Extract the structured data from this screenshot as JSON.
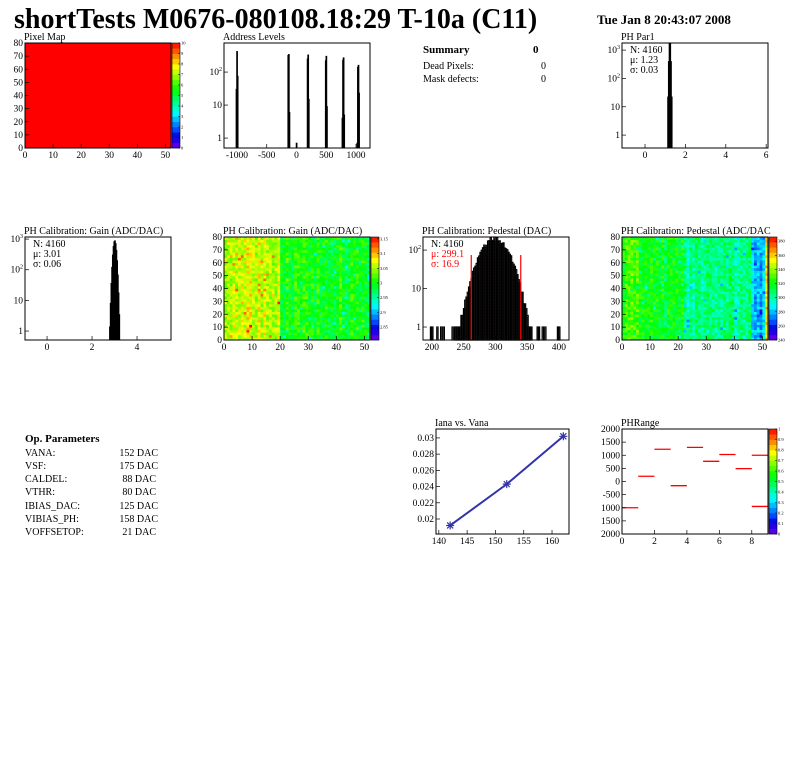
{
  "header": {
    "title": "shortTests M0676-080108.18:29 T-10a (C11)",
    "date": "Tue Jan  8 20:43:07 2008"
  },
  "summary": {
    "title": "Summary",
    "total": "0",
    "rows": [
      {
        "label": "Dead Pixels:",
        "value": "0"
      },
      {
        "label": "Mask defects:",
        "value": "0"
      }
    ]
  },
  "op_parameters": {
    "title": "Op. Parameters",
    "rows": [
      {
        "label": "VANA:",
        "value": "152 DAC"
      },
      {
        "label": "VSF:",
        "value": "175 DAC"
      },
      {
        "label": "CALDEL:",
        "value": "88 DAC"
      },
      {
        "label": "VTHR:",
        "value": "80 DAC"
      },
      {
        "label": "IBIAS_DAC:",
        "value": "125 DAC"
      },
      {
        "label": "VIBIAS_PH:",
        "value": "158 DAC"
      },
      {
        "label": "VOFFSETOP:",
        "value": "21 DAC"
      }
    ]
  },
  "chart_data": [
    {
      "id": "pixmap",
      "type": "heatmap",
      "title": "Pixel Map",
      "xlim": [
        0,
        52
      ],
      "ylim": [
        0,
        80
      ],
      "zlim": [
        0,
        10
      ],
      "xticks": [
        "0",
        "10",
        "20",
        "30",
        "40",
        "50"
      ],
      "yticks": [
        "0",
        "10",
        "20",
        "30",
        "40",
        "50",
        "60",
        "70",
        "80"
      ],
      "palette_ticks": [
        "0",
        "1",
        "2",
        "3",
        "4",
        "5",
        "6",
        "7",
        "8",
        "9",
        "10"
      ],
      "uniform_value": 10
    },
    {
      "id": "addr",
      "type": "bar",
      "title": "Address Levels",
      "xlim": [
        -1218,
        1235
      ],
      "yscale": "log",
      "ylim": [
        0.5,
        760
      ],
      "xticks": [
        "-1000",
        "-500",
        "0",
        "500",
        "1000"
      ],
      "yticks": [
        "1",
        "10",
        "10^2"
      ],
      "bin_width": 10,
      "bins": [
        [
          -1010,
          30
        ],
        [
          -1000,
          420
        ],
        [
          -990,
          75
        ],
        [
          -140,
          320
        ],
        [
          -130,
          340
        ],
        [
          -120,
          6
        ],
        [
          0,
          0.7
        ],
        [
          185,
          250
        ],
        [
          195,
          330
        ],
        [
          205,
          15
        ],
        [
          490,
          220
        ],
        [
          500,
          300
        ],
        [
          510,
          9
        ],
        [
          770,
          4
        ],
        [
          780,
          230
        ],
        [
          790,
          270
        ],
        [
          800,
          5
        ],
        [
          1020,
          0.7
        ],
        [
          1030,
          140
        ],
        [
          1040,
          160
        ],
        [
          1050,
          23
        ]
      ]
    },
    {
      "id": "par1",
      "type": "bar",
      "title": "PH Par1",
      "xlim": [
        -1.14,
        6.09
      ],
      "yscale": "log",
      "ylim": [
        0.35,
        1780
      ],
      "xticks": [
        "0",
        "2",
        "4",
        "6"
      ],
      "yticks": [
        "1",
        "10",
        "10^2",
        "10^3"
      ],
      "stats": {
        "N": "N: 4160",
        "mean": "μ: 1.23",
        "sigma": "σ: 0.03"
      },
      "N": 4160,
      "mean": 1.23,
      "sigma": 0.03,
      "bin_width": 0.036
    },
    {
      "id": "gainh",
      "type": "bar",
      "title": "PH Calibration: Gain (ADC/DAC)",
      "xlim": [
        -0.98,
        5.51
      ],
      "yscale": "log",
      "ylim": [
        0.51,
        1170
      ],
      "xticks": [
        "0",
        "2",
        "4"
      ],
      "yticks": [
        "1",
        "10",
        "10^2",
        "10^3"
      ],
      "stats": {
        "N": "N: 4160",
        "mean": "μ: 3.01",
        "sigma": "σ: 0.06"
      },
      "N": 4160,
      "mean": 3.01,
      "sigma": 0.06,
      "bin_width": 0.032
    },
    {
      "id": "gainm",
      "type": "heatmap",
      "title": "PH Calibration: Gain (ADC/DAC)",
      "xlim": [
        0,
        52
      ],
      "ylim": [
        0,
        80
      ],
      "zlim": [
        2.82,
        3.18
      ],
      "xticks": [
        "0",
        "10",
        "20",
        "30",
        "40",
        "50"
      ],
      "yticks": [
        "0",
        "10",
        "20",
        "30",
        "40",
        "50",
        "60",
        "70",
        "80"
      ],
      "palette_ticks": [
        "2.85",
        "2.9",
        "2.95",
        "3",
        "3.05",
        "3.1",
        "3.15"
      ]
    },
    {
      "id": "pedh",
      "type": "bar",
      "title": "PH Calibration: Pedestal (DAC)",
      "xlim": [
        186,
        416
      ],
      "yscale": "log",
      "ylim": [
        0.46,
        219
      ],
      "xticks": [
        "200",
        "250",
        "300",
        "350",
        "400"
      ],
      "yticks": [
        "1",
        "10",
        "10^2"
      ],
      "stats": {
        "N": "N: 4160",
        "mean": "μ: 299.1",
        "sigma": "σ: 16.9"
      },
      "N": 4160,
      "mean": 299.1,
      "sigma": 16.9,
      "bin_width": 2,
      "fit_range": [
        262,
        340
      ],
      "fit_color": "#ff0000"
    },
    {
      "id": "pedm",
      "type": "heatmap",
      "title": "PH Calibration: Pedestal (ADC/DAC",
      "xlim": [
        0,
        52
      ],
      "ylim": [
        0,
        80
      ],
      "zlim": [
        240,
        385
      ],
      "xticks": [
        "0",
        "10",
        "20",
        "30",
        "40",
        "50"
      ],
      "yticks": [
        "0",
        "10",
        "20",
        "30",
        "40",
        "50",
        "60",
        "70",
        "80"
      ],
      "palette_ticks": [
        "240",
        "260",
        "280",
        "300",
        "320",
        "340",
        "360",
        "380"
      ]
    },
    {
      "id": "iana",
      "type": "line",
      "title": "Iana vs. Vana",
      "xlim": [
        139.5,
        163
      ],
      "ylim": [
        0.01815,
        0.0311
      ],
      "xticks": [
        "140",
        "145",
        "150",
        "155",
        "160"
      ],
      "yticks": [
        "0.02",
        "0.022",
        "0.024",
        "0.026",
        "0.028",
        "0.03"
      ],
      "x": [
        142,
        152,
        162
      ],
      "y": [
        0.0192,
        0.0243,
        0.0302
      ],
      "color": "#3333aa"
    },
    {
      "id": "phr",
      "type": "heatmap",
      "title": "PHRange",
      "xlim": [
        0,
        9
      ],
      "ylim": [
        -2000,
        2000
      ],
      "zlim": [
        0,
        1
      ],
      "xticks": [
        "0",
        "2",
        "4",
        "6",
        "8"
      ],
      "yticks": [
        "2000",
        "1500",
        "1000",
        "500",
        "0",
        "-500",
        "1000",
        "1500",
        "2000"
      ],
      "palette_ticks": [
        "0",
        "0.1",
        "0.2",
        "0.3",
        "0.4",
        "0.5",
        "0.6",
        "0.7",
        "0.8",
        "0.9",
        "1"
      ],
      "segments": [
        [
          0,
          -1000
        ],
        [
          1,
          200
        ],
        [
          2,
          1230
        ],
        [
          3,
          -160
        ],
        [
          4,
          1300
        ],
        [
          5,
          770
        ],
        [
          6,
          1030
        ],
        [
          7,
          490
        ],
        [
          8,
          1000
        ],
        [
          8,
          -950
        ]
      ],
      "color": "#ff0000"
    }
  ]
}
